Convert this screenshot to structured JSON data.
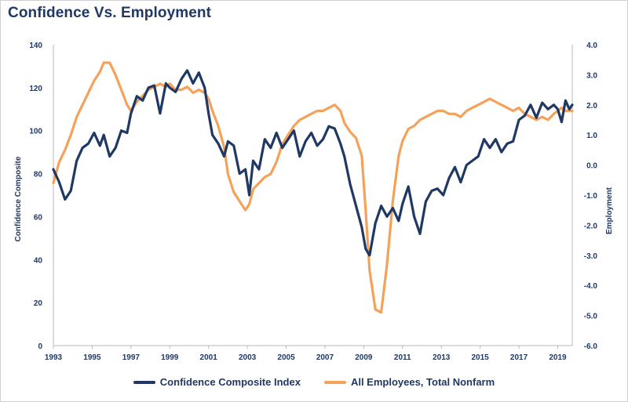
{
  "chart_data": {
    "type": "line",
    "title": "Confidence Vs. Employment",
    "ylabel_left": "Confidence Composite",
    "ylabel_right": "Employment",
    "x_range": [
      1993,
      2019.75
    ],
    "ylim_left": [
      0,
      140
    ],
    "ylim_right": [
      -6.0,
      4.0
    ],
    "x_ticks": [
      "1993",
      "1995",
      "1997",
      "1999",
      "2001",
      "2003",
      "2005",
      "2007",
      "2009",
      "2011",
      "2013",
      "2015",
      "2017",
      "2019"
    ],
    "y_ticks_left": [
      "0",
      "20",
      "40",
      "60",
      "80",
      "100",
      "120",
      "140"
    ],
    "y_ticks_right": [
      "-6.0",
      "-5.0",
      "-4.0",
      "-3.0",
      "-2.0",
      "-1.0",
      "0.0",
      "1.0",
      "2.0",
      "3.0",
      "4.0"
    ],
    "grid": false,
    "legend_position": "bottom",
    "colors": {
      "confidence": "#1f3864",
      "employment": "#f4a259",
      "axis": "#1f3864"
    },
    "series": [
      {
        "name": "Confidence Composite Index",
        "axis": "left",
        "x": [
          1993.0,
          1993.3,
          1993.6,
          1993.9,
          1994.2,
          1994.5,
          1994.8,
          1995.1,
          1995.4,
          1995.6,
          1995.9,
          1996.2,
          1996.5,
          1996.8,
          1997.0,
          1997.3,
          1997.6,
          1997.9,
          1998.2,
          1998.5,
          1998.8,
          1999.0,
          1999.3,
          1999.6,
          1999.9,
          2000.2,
          2000.5,
          2000.8,
          2001.0,
          2001.2,
          2001.5,
          2001.8,
          2002.0,
          2002.3,
          2002.6,
          2002.9,
          2003.1,
          2003.3,
          2003.6,
          2003.9,
          2004.2,
          2004.5,
          2004.8,
          2005.1,
          2005.4,
          2005.7,
          2006.0,
          2006.3,
          2006.6,
          2006.9,
          2007.2,
          2007.5,
          2007.8,
          2008.0,
          2008.3,
          2008.6,
          2008.9,
          2009.1,
          2009.3,
          2009.6,
          2009.9,
          2010.2,
          2010.5,
          2010.8,
          2011.0,
          2011.3,
          2011.6,
          2011.9,
          2012.2,
          2012.5,
          2012.8,
          2013.1,
          2013.4,
          2013.7,
          2014.0,
          2014.3,
          2014.6,
          2014.9,
          2015.2,
          2015.5,
          2015.8,
          2016.1,
          2016.4,
          2016.7,
          2017.0,
          2017.3,
          2017.6,
          2017.9,
          2018.2,
          2018.5,
          2018.8,
          2019.0,
          2019.2,
          2019.4,
          2019.6,
          2019.75
        ],
        "values": [
          82,
          76,
          68,
          72,
          86,
          92,
          94,
          99,
          93,
          98,
          88,
          92,
          100,
          99,
          108,
          116,
          114,
          120,
          121,
          108,
          122,
          120,
          118,
          124,
          128,
          122,
          127,
          120,
          108,
          98,
          94,
          88,
          95,
          93,
          80,
          82,
          70,
          86,
          82,
          96,
          92,
          99,
          92,
          96,
          100,
          88,
          95,
          99,
          93,
          96,
          102,
          101,
          94,
          88,
          75,
          65,
          55,
          45,
          42,
          57,
          65,
          60,
          64,
          58,
          66,
          74,
          60,
          52,
          67,
          72,
          73,
          70,
          78,
          83,
          76,
          84,
          86,
          88,
          96,
          92,
          96,
          90,
          94,
          95,
          105,
          107,
          112,
          106,
          113,
          110,
          112,
          110,
          104,
          114,
          110,
          112
        ]
      },
      {
        "name": "All Employees, Total Nonfarm",
        "axis": "right",
        "x": [
          1993.0,
          1993.3,
          1993.6,
          1993.9,
          1994.2,
          1994.5,
          1994.8,
          1995.1,
          1995.4,
          1995.6,
          1995.9,
          1996.2,
          1996.5,
          1996.8,
          1997.0,
          1997.3,
          1997.6,
          1997.9,
          1998.2,
          1998.5,
          1998.8,
          1999.0,
          1999.3,
          1999.6,
          1999.9,
          2000.2,
          2000.5,
          2000.8,
          2001.0,
          2001.2,
          2001.5,
          2001.8,
          2002.0,
          2002.3,
          2002.6,
          2002.9,
          2003.1,
          2003.3,
          2003.6,
          2003.9,
          2004.2,
          2004.5,
          2004.8,
          2005.1,
          2005.4,
          2005.7,
          2006.0,
          2006.3,
          2006.6,
          2006.9,
          2007.2,
          2007.5,
          2007.8,
          2008.0,
          2008.3,
          2008.6,
          2008.9,
          2009.1,
          2009.3,
          2009.6,
          2009.9,
          2010.2,
          2010.5,
          2010.8,
          2011.0,
          2011.3,
          2011.6,
          2011.9,
          2012.2,
          2012.5,
          2012.8,
          2013.1,
          2013.4,
          2013.7,
          2014.0,
          2014.3,
          2014.6,
          2014.9,
          2015.2,
          2015.5,
          2015.8,
          2016.1,
          2016.4,
          2016.7,
          2017.0,
          2017.3,
          2017.6,
          2017.9,
          2018.2,
          2018.5,
          2018.8,
          2019.0,
          2019.2,
          2019.4,
          2019.6,
          2019.75
        ],
        "values": [
          -0.6,
          0.1,
          0.5,
          1.0,
          1.6,
          2.0,
          2.4,
          2.8,
          3.1,
          3.4,
          3.4,
          3.0,
          2.5,
          2.0,
          1.8,
          2.1,
          2.3,
          2.5,
          2.6,
          2.7,
          2.6,
          2.7,
          2.5,
          2.5,
          2.6,
          2.4,
          2.5,
          2.4,
          2.2,
          1.8,
          1.3,
          0.6,
          -0.3,
          -0.9,
          -1.2,
          -1.5,
          -1.3,
          -0.8,
          -0.6,
          -0.4,
          -0.3,
          0.1,
          0.7,
          1.0,
          1.3,
          1.5,
          1.6,
          1.7,
          1.8,
          1.8,
          1.9,
          2.0,
          1.8,
          1.4,
          1.1,
          0.9,
          0.3,
          -1.5,
          -3.5,
          -4.8,
          -4.9,
          -3.3,
          -1.2,
          0.3,
          0.8,
          1.2,
          1.3,
          1.5,
          1.6,
          1.7,
          1.8,
          1.8,
          1.7,
          1.7,
          1.6,
          1.8,
          1.9,
          2.0,
          2.1,
          2.2,
          2.1,
          2.0,
          1.9,
          1.8,
          1.9,
          1.7,
          1.6,
          1.5,
          1.6,
          1.5,
          1.7,
          1.8,
          1.9,
          1.8,
          1.8,
          1.8
        ]
      }
    ]
  }
}
